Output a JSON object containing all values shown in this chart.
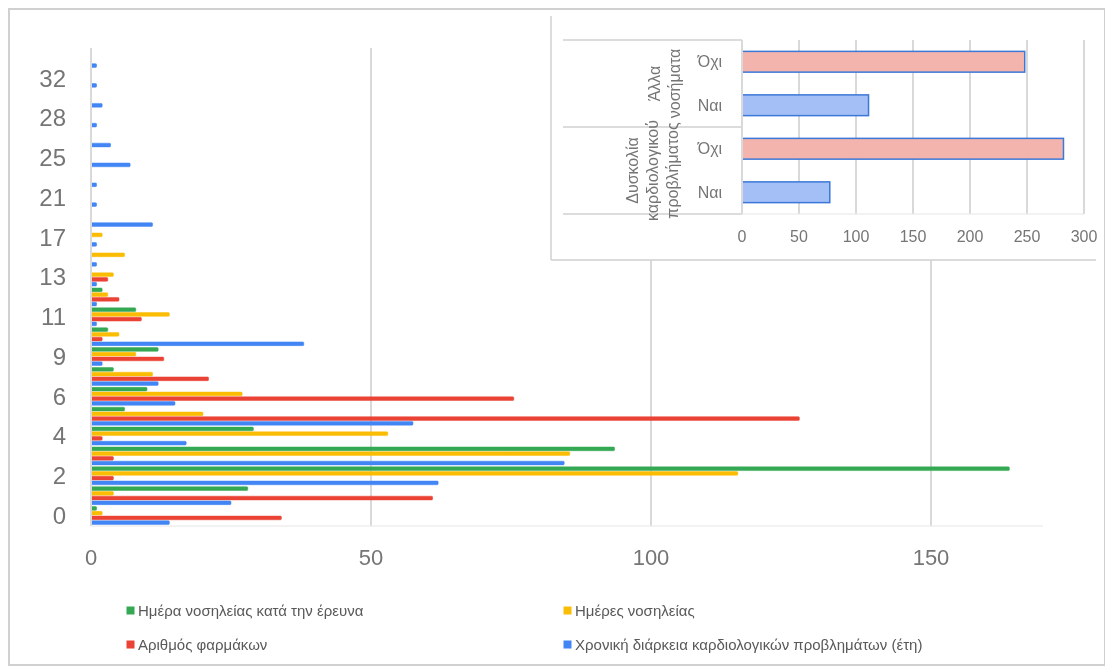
{
  "chart_data": [
    {
      "type": "bar",
      "orientation": "horizontal",
      "categories": [
        null,
        "32",
        null,
        "28",
        null,
        "25",
        null,
        "21",
        null,
        "17",
        null,
        "13",
        null,
        "11",
        null,
        "9",
        null,
        "6",
        null,
        "4",
        null,
        "2",
        null,
        "0"
      ],
      "series": [
        {
          "name": "Ημέρα νοσηλείας κατά την έρευνα",
          "color": "#34a853",
          "values": [
            null,
            null,
            null,
            null,
            null,
            null,
            null,
            null,
            null,
            null,
            null,
            null,
            2,
            8,
            3,
            12,
            4,
            10,
            6,
            29,
            93.5,
            164,
            28,
            1
          ]
        },
        {
          "name": "Ημέρες νοσηλείας",
          "color": "#fbbc04",
          "values": [
            null,
            null,
            null,
            null,
            null,
            null,
            null,
            null,
            null,
            2,
            6,
            4,
            3,
            14,
            5,
            8,
            11,
            27,
            20,
            53,
            85.5,
            115.5,
            4,
            2
          ]
        },
        {
          "name": "Αριθμός φαρμάκων",
          "color": "#ea4335",
          "values": [
            null,
            null,
            null,
            null,
            null,
            null,
            null,
            null,
            null,
            null,
            null,
            3,
            5,
            9,
            2,
            13,
            21,
            75.5,
            126.5,
            2,
            4,
            4,
            61,
            34
          ]
        },
        {
          "name": "Χρονική  διάρκεια καρδιολογικών προβλημάτων (έτη)",
          "color": "#4285f4",
          "values": [
            1,
            1,
            2,
            1,
            3.5,
            7,
            1,
            1,
            11,
            1,
            1,
            1,
            1,
            1,
            38,
            2,
            12,
            15,
            57.5,
            17,
            84.5,
            62,
            25,
            14
          ]
        }
      ],
      "xlim": [
        0,
        170
      ],
      "xticks": [
        0,
        50,
        100,
        150
      ],
      "grid": "x",
      "legend": "bottom"
    },
    {
      "type": "bar",
      "orientation": "horizontal",
      "categories": [
        "Όχι",
        "Ναι",
        "Όχι",
        "Ναι"
      ],
      "values": [
        248,
        111,
        282,
        77
      ],
      "colors": [
        "#f4b4ae",
        "#a3bff6",
        "#f4b4ae",
        "#a3bff6"
      ],
      "annotations": [
        "Άλλα νοσήματα",
        "Δυσκολία καρδιολογικού προβλήματος"
      ],
      "xlim": [
        0,
        300
      ],
      "xticks": [
        0,
        50,
        100,
        150,
        200,
        250,
        300
      ],
      "grid": "x"
    }
  ]
}
